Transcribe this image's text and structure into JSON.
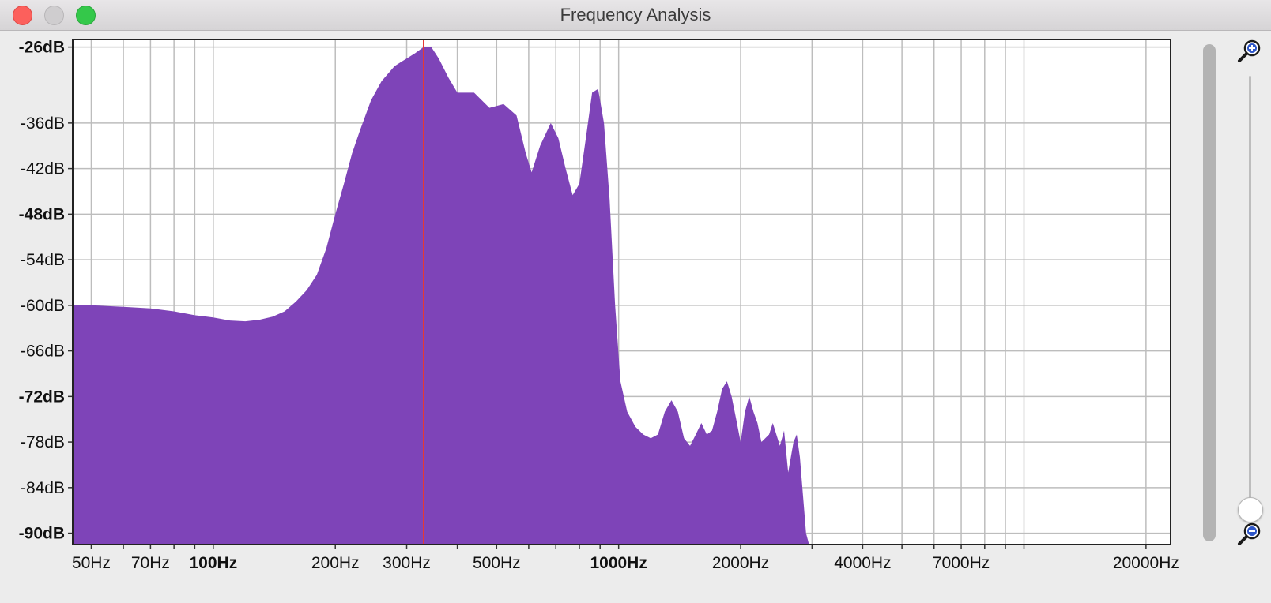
{
  "window": {
    "title": "Frequency Analysis"
  },
  "icons": {
    "close": "close-icon",
    "minimize": "minimize-icon",
    "zoom": "zoom-window-icon",
    "zoom_in": "zoom-in-magnifier-icon",
    "zoom_out": "zoom-out-magnifier-icon"
  },
  "colors": {
    "spectrum": "#7e44b8",
    "cursor": "#e53935",
    "grid": "#bdbdbd"
  },
  "zoom_slider": {
    "level": 0.05
  },
  "chart_data": {
    "type": "area",
    "x_scale": "log",
    "xlim": [
      45,
      23000
    ],
    "ylim": [
      -91.5,
      -25
    ],
    "cursor_x": 330,
    "y_ticks": [
      {
        "value": -26,
        "label": "-26dB",
        "bold": true
      },
      {
        "value": -36,
        "label": "-36dB",
        "bold": false
      },
      {
        "value": -42,
        "label": "-42dB",
        "bold": false
      },
      {
        "value": -48,
        "label": "-48dB",
        "bold": true
      },
      {
        "value": -54,
        "label": "-54dB",
        "bold": false
      },
      {
        "value": -60,
        "label": "-60dB",
        "bold": false
      },
      {
        "value": -66,
        "label": "-66dB",
        "bold": false
      },
      {
        "value": -72,
        "label": "-72dB",
        "bold": true
      },
      {
        "value": -78,
        "label": "-78dB",
        "bold": false
      },
      {
        "value": -84,
        "label": "-84dB",
        "bold": false
      },
      {
        "value": -90,
        "label": "-90dB",
        "bold": true
      }
    ],
    "x_ticks": [
      {
        "value": 50,
        "label": "50Hz",
        "bold": false
      },
      {
        "value": 70,
        "label": "70Hz",
        "bold": false
      },
      {
        "value": 100,
        "label": "100Hz",
        "bold": true
      },
      {
        "value": 200,
        "label": "200Hz",
        "bold": false
      },
      {
        "value": 300,
        "label": "300Hz",
        "bold": false
      },
      {
        "value": 500,
        "label": "500Hz",
        "bold": false
      },
      {
        "value": 1000,
        "label": "1000Hz",
        "bold": true
      },
      {
        "value": 2000,
        "label": "2000Hz",
        "bold": false
      },
      {
        "value": 4000,
        "label": "4000Hz",
        "bold": false
      },
      {
        "value": 7000,
        "label": "7000Hz",
        "bold": false
      },
      {
        "value": 20000,
        "label": "20000Hz",
        "bold": false
      }
    ],
    "x_grid": [
      50,
      60,
      70,
      80,
      90,
      100,
      200,
      300,
      400,
      500,
      600,
      700,
      800,
      900,
      1000,
      2000,
      3000,
      4000,
      5000,
      6000,
      7000,
      8000,
      9000,
      10000,
      20000
    ],
    "series": [
      {
        "points": [
          [
            45,
            -60.0
          ],
          [
            50,
            -60.0
          ],
          [
            60,
            -60.2
          ],
          [
            70,
            -60.4
          ],
          [
            80,
            -60.8
          ],
          [
            90,
            -61.3
          ],
          [
            100,
            -61.6
          ],
          [
            110,
            -62.0
          ],
          [
            120,
            -62.1
          ],
          [
            130,
            -61.9
          ],
          [
            140,
            -61.5
          ],
          [
            150,
            -60.8
          ],
          [
            160,
            -59.5
          ],
          [
            170,
            -58.0
          ],
          [
            180,
            -56.0
          ],
          [
            190,
            -52.5
          ],
          [
            200,
            -48.0
          ],
          [
            210,
            -44.0
          ],
          [
            220,
            -40.0
          ],
          [
            230,
            -37.0
          ],
          [
            245,
            -33.0
          ],
          [
            260,
            -30.5
          ],
          [
            280,
            -28.5
          ],
          [
            300,
            -27.5
          ],
          [
            315,
            -26.8
          ],
          [
            330,
            -26.0
          ],
          [
            345,
            -26.0
          ],
          [
            360,
            -27.5
          ],
          [
            380,
            -30.0
          ],
          [
            400,
            -32.0
          ],
          [
            440,
            -32.0
          ],
          [
            480,
            -34.0
          ],
          [
            520,
            -33.5
          ],
          [
            560,
            -35.0
          ],
          [
            590,
            -40.0
          ],
          [
            610,
            -42.5
          ],
          [
            640,
            -39.0
          ],
          [
            680,
            -36.0
          ],
          [
            710,
            -38.0
          ],
          [
            740,
            -42.0
          ],
          [
            770,
            -45.5
          ],
          [
            800,
            -44.0
          ],
          [
            830,
            -38.0
          ],
          [
            860,
            -32.0
          ],
          [
            890,
            -31.5
          ],
          [
            920,
            -36.0
          ],
          [
            950,
            -46.0
          ],
          [
            980,
            -60.0
          ],
          [
            1010,
            -70.0
          ],
          [
            1050,
            -74.0
          ],
          [
            1100,
            -76.0
          ],
          [
            1150,
            -77.0
          ],
          [
            1200,
            -77.5
          ],
          [
            1250,
            -77.0
          ],
          [
            1300,
            -74.0
          ],
          [
            1350,
            -72.5
          ],
          [
            1400,
            -74.0
          ],
          [
            1450,
            -77.5
          ],
          [
            1500,
            -78.5
          ],
          [
            1550,
            -77.0
          ],
          [
            1600,
            -75.5
          ],
          [
            1650,
            -77.0
          ],
          [
            1700,
            -76.5
          ],
          [
            1750,
            -74.0
          ],
          [
            1800,
            -71.0
          ],
          [
            1850,
            -70.0
          ],
          [
            1900,
            -72.0
          ],
          [
            1950,
            -75.0
          ],
          [
            2000,
            -78.0
          ],
          [
            2050,
            -74.0
          ],
          [
            2100,
            -72.0
          ],
          [
            2150,
            -74.0
          ],
          [
            2200,
            -75.5
          ],
          [
            2250,
            -78.0
          ],
          [
            2350,
            -77.0
          ],
          [
            2400,
            -75.5
          ],
          [
            2500,
            -78.5
          ],
          [
            2560,
            -76.5
          ],
          [
            2620,
            -82.0
          ],
          [
            2700,
            -78.0
          ],
          [
            2750,
            -77.0
          ],
          [
            2800,
            -80.0
          ],
          [
            2900,
            -90.0
          ],
          [
            2950,
            -91.5
          ]
        ]
      }
    ]
  }
}
